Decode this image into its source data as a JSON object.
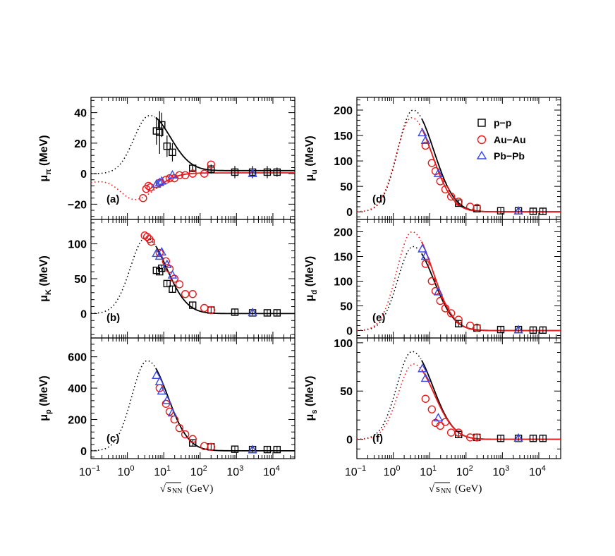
{
  "figure": {
    "xlabel_sqrt": "√",
    "xlabel_s": "s",
    "xlabel_sub": "NN",
    "xlabel_unit": "(GeV)"
  },
  "legend": [
    {
      "label": "p−p",
      "marker": "square",
      "color": "#000000"
    },
    {
      "label": "Au−Au",
      "marker": "circle",
      "color": "#e8191c"
    },
    {
      "label": "Pb−Pb",
      "marker": "triangle",
      "color": "#3a47e6"
    }
  ],
  "colors": {
    "pp": "#000000",
    "auau": "#e8191c",
    "pbpb": "#3a47e6"
  },
  "chart_data": [
    {
      "panel": "(a)",
      "type": "scatter",
      "log_x": true,
      "xlim": [
        0.1,
        40000
      ],
      "ylim": [
        -30,
        50
      ],
      "ylabel_main": "μ",
      "ylabel_sub": "π",
      "ylabel_unit": "(MeV)",
      "yticks": [
        -20,
        0,
        20,
        40
      ],
      "yticklabels": [
        "−20",
        "0",
        "20",
        "40"
      ],
      "series": [
        {
          "name": "p−p",
          "marker": "square",
          "color": "#000000",
          "x": [
            6.3,
            7.7,
            8.8,
            12.3,
            17.3,
            62.4,
            200,
            900,
            2760,
            7000,
            13000
          ],
          "y": [
            28,
            27,
            32,
            18,
            14,
            3.5,
            3,
            1,
            1,
            1,
            1
          ],
          "err": [
            9,
            14,
            8,
            7,
            6,
            2,
            3,
            4,
            4,
            4,
            3
          ]
        },
        {
          "name": "Au−Au",
          "marker": "circle",
          "color": "#e8191c",
          "x": [
            2.7,
            3.3,
            3.8,
            4.3,
            7.7,
            11.5,
            14.5,
            19.6,
            27,
            39,
            62.4,
            130,
            200
          ],
          "y": [
            -16,
            -10,
            -8,
            -9,
            -6,
            -4,
            -3,
            -3,
            -1,
            -1,
            0,
            0,
            6
          ]
        },
        {
          "name": "Pb−Pb",
          "marker": "triangle",
          "color": "#3a47e6",
          "x": [
            6.3,
            7.7,
            8.8,
            17.3,
            2760
          ],
          "y": [
            -7,
            -6,
            -5,
            -1,
            0
          ]
        }
      ],
      "fits": [
        {
          "name": "p−p",
          "color": "#000000",
          "kind": "log-normal",
          "peak": 38,
          "peak_x": 4,
          "tail_offset": 2,
          "zero_below": 0.12,
          "flat_base": 0
        },
        {
          "name": "Au−Au",
          "color": "#e8191c",
          "kind": "log-normal",
          "peak": -17,
          "peak_x": 1.6,
          "tail_offset": 0.5,
          "zero_below": 0,
          "flat_base": -11
        }
      ]
    },
    {
      "panel": "(b)",
      "type": "scatter",
      "log_x": true,
      "xlim": [
        0.1,
        40000
      ],
      "ylim": [
        -35,
        135
      ],
      "ylabel_main": "μ",
      "ylabel_sub": "K",
      "ylabel_unit": "(MeV)",
      "yticks": [
        0,
        50,
        100
      ],
      "yticklabels": [
        "0",
        "50",
        "100"
      ],
      "series": [
        {
          "name": "p−p",
          "marker": "square",
          "color": "#000000",
          "x": [
            6.3,
            7.7,
            8.8,
            12.3,
            17.3,
            62.4,
            200,
            900,
            2760,
            7000,
            13000
          ],
          "y": [
            62,
            60,
            65,
            43,
            35,
            12,
            5,
            2,
            1,
            1,
            1
          ]
        },
        {
          "name": "Au−Au",
          "marker": "circle",
          "color": "#e8191c",
          "x": [
            3,
            3.5,
            4,
            4.5,
            7.7,
            11.5,
            14.5,
            19.6,
            27,
            39,
            62.4,
            130,
            200
          ],
          "y": [
            112,
            110,
            107,
            103,
            87,
            75,
            64,
            50,
            42,
            28,
            28,
            8,
            5
          ]
        },
        {
          "name": "Pb−Pb",
          "marker": "triangle",
          "color": "#3a47e6",
          "x": [
            6.3,
            7.7,
            8.8,
            12.3,
            17.3,
            2760
          ],
          "y": [
            86,
            82,
            88,
            70,
            55,
            1
          ]
        }
      ],
      "fits": [
        {
          "name": "p−p",
          "color": "#000000",
          "kind": "log-normal",
          "peak": 109,
          "peak_x": 3.2,
          "tail_offset": 0,
          "zero_below": 0,
          "flat_base": 0
        }
      ]
    },
    {
      "panel": "(c)",
      "type": "scatter",
      "log_x": true,
      "xlim": [
        0.1,
        40000
      ],
      "ylim": [
        -50,
        720
      ],
      "ylabel_main": "μ",
      "ylabel_sub": "p",
      "ylabel_unit": "(MeV)",
      "yticks": [
        0,
        200,
        400,
        600
      ],
      "yticklabels": [
        "0",
        "200",
        "400",
        "600"
      ],
      "series": [
        {
          "name": "p−p",
          "marker": "square",
          "color": "#000000",
          "x": [
            62.4,
            200,
            900,
            2760,
            7000,
            13000
          ],
          "y": [
            50,
            25,
            10,
            8,
            8,
            8
          ]
        },
        {
          "name": "Au−Au",
          "marker": "circle",
          "color": "#e8191c",
          "x": [
            7.7,
            11.5,
            14.5,
            19.6,
            27,
            39,
            62.4,
            130,
            200
          ],
          "y": [
            400,
            300,
            250,
            200,
            145,
            105,
            75,
            30,
            25
          ]
        },
        {
          "name": "Pb−Pb",
          "marker": "triangle",
          "color": "#3a47e6",
          "x": [
            6.3,
            7.7,
            8.8,
            12.3,
            17.3,
            2760
          ],
          "y": [
            480,
            440,
            380,
            320,
            240,
            5
          ]
        }
      ],
      "fits": [
        {
          "name": "p−p",
          "color": "#000000",
          "kind": "log-normal",
          "peak": 575,
          "peak_x": 3.5,
          "tail_offset": 0,
          "zero_below": 0,
          "flat_base": 0
        }
      ]
    },
    {
      "panel": "(d)",
      "type": "scatter",
      "log_x": true,
      "xlim": [
        0.1,
        40000
      ],
      "ylim": [
        -15,
        225
      ],
      "ylabel_main": "μ",
      "ylabel_sub": "u",
      "ylabel_unit": "(MeV)",
      "yticks": [
        0,
        50,
        100,
        150,
        200
      ],
      "yticklabels": [
        "0",
        "50",
        "100",
        "150",
        "200"
      ],
      "series": [
        {
          "name": "p−p",
          "marker": "square",
          "color": "#000000",
          "x": [
            62.4,
            200,
            900,
            2760,
            7000,
            13000
          ],
          "y": [
            17,
            6,
            2,
            2,
            1,
            1
          ]
        },
        {
          "name": "Au−Au",
          "marker": "circle",
          "color": "#e8191c",
          "x": [
            7.7,
            11.5,
            14.5,
            19.6,
            27,
            39,
            62.4,
            130,
            200
          ],
          "y": [
            130,
            96,
            80,
            60,
            44,
            30,
            20,
            10,
            8
          ]
        },
        {
          "name": "Pb−Pb",
          "marker": "triangle",
          "color": "#3a47e6",
          "x": [
            6.3,
            7.7,
            17.3,
            2760
          ],
          "y": [
            155,
            140,
            75,
            1
          ]
        }
      ],
      "fits": [
        {
          "name": "p−p",
          "color": "#000000",
          "kind": "log-normal",
          "peak": 200,
          "peak_x": 3.5,
          "tail_offset": 0,
          "zero_below": 0,
          "flat_base": 0
        },
        {
          "name": "Au−Au",
          "color": "#e8191c",
          "kind": "log-normal",
          "peak": 185,
          "peak_x": 3.2,
          "tail_offset": 0,
          "zero_below": 0,
          "flat_base": 0
        }
      ]
    },
    {
      "panel": "(e)",
      "type": "scatter",
      "log_x": true,
      "xlim": [
        0.1,
        40000
      ],
      "ylim": [
        -15,
        225
      ],
      "ylabel_main": "μ",
      "ylabel_sub": "d",
      "ylabel_unit": "(MeV)",
      "yticks": [
        0,
        50,
        100,
        150,
        200
      ],
      "yticklabels": [
        "0",
        "50",
        "100",
        "150",
        "200"
      ],
      "series": [
        {
          "name": "p−p",
          "marker": "square",
          "color": "#000000",
          "x": [
            62.4,
            200,
            900,
            2760,
            7000,
            13000
          ],
          "y": [
            14,
            5,
            2,
            2,
            1,
            1
          ]
        },
        {
          "name": "Au−Au",
          "marker": "circle",
          "color": "#e8191c",
          "x": [
            7.7,
            11.5,
            14.5,
            19.6,
            27,
            39,
            62.4,
            130,
            200
          ],
          "y": [
            135,
            100,
            80,
            60,
            45,
            35,
            22,
            10,
            6
          ]
        },
        {
          "name": "Pb−Pb",
          "marker": "triangle",
          "color": "#3a47e6",
          "x": [
            6.3,
            7.7,
            17.3,
            2760
          ],
          "y": [
            165,
            150,
            78,
            1
          ]
        }
      ],
      "fits": [
        {
          "name": "p−p",
          "color": "#000000",
          "kind": "log-normal",
          "peak": 170,
          "peak_x": 3.5,
          "tail_offset": 0,
          "zero_below": 0,
          "flat_base": 0
        },
        {
          "name": "Au−Au",
          "color": "#e8191c",
          "kind": "log-normal",
          "peak": 200,
          "peak_x": 3.3,
          "tail_offset": 0,
          "zero_below": 0,
          "flat_base": 0
        }
      ]
    },
    {
      "panel": "(f)",
      "type": "scatter",
      "log_x": true,
      "xlim": [
        0.1,
        40000
      ],
      "ylim": [
        -20,
        105
      ],
      "ylabel_main": "μ",
      "ylabel_sub": "s",
      "ylabel_unit": "(MeV)",
      "yticks": [
        0,
        50,
        100
      ],
      "yticklabels": [
        "0",
        "50",
        "100"
      ],
      "series": [
        {
          "name": "p−p",
          "marker": "square",
          "color": "#000000",
          "x": [
            62.4,
            200,
            900,
            2760,
            7000,
            13000
          ],
          "y": [
            5,
            2,
            1,
            1,
            1,
            1
          ]
        },
        {
          "name": "Au−Au",
          "marker": "circle",
          "color": "#e8191c",
          "x": [
            7.7,
            11.5,
            14.5,
            19.6,
            27,
            39,
            62.4,
            130,
            200
          ],
          "y": [
            42,
            31,
            17,
            14,
            18,
            7,
            7,
            2,
            2
          ]
        },
        {
          "name": "Pb−Pb",
          "marker": "triangle",
          "color": "#3a47e6",
          "x": [
            6.3,
            7.7,
            17.3,
            2760
          ],
          "y": [
            73,
            63,
            22,
            1
          ]
        }
      ],
      "fits": [
        {
          "name": "p−p",
          "color": "#000000",
          "kind": "log-normal",
          "peak": 91,
          "peak_x": 3.3,
          "tail_offset": 0,
          "zero_below": 0,
          "flat_base": 0
        },
        {
          "name": "Au−Au",
          "color": "#e8191c",
          "kind": "log-normal",
          "peak": 78,
          "peak_x": 3.6,
          "tail_offset": 0,
          "zero_below": 0,
          "flat_base": 0
        }
      ]
    }
  ]
}
